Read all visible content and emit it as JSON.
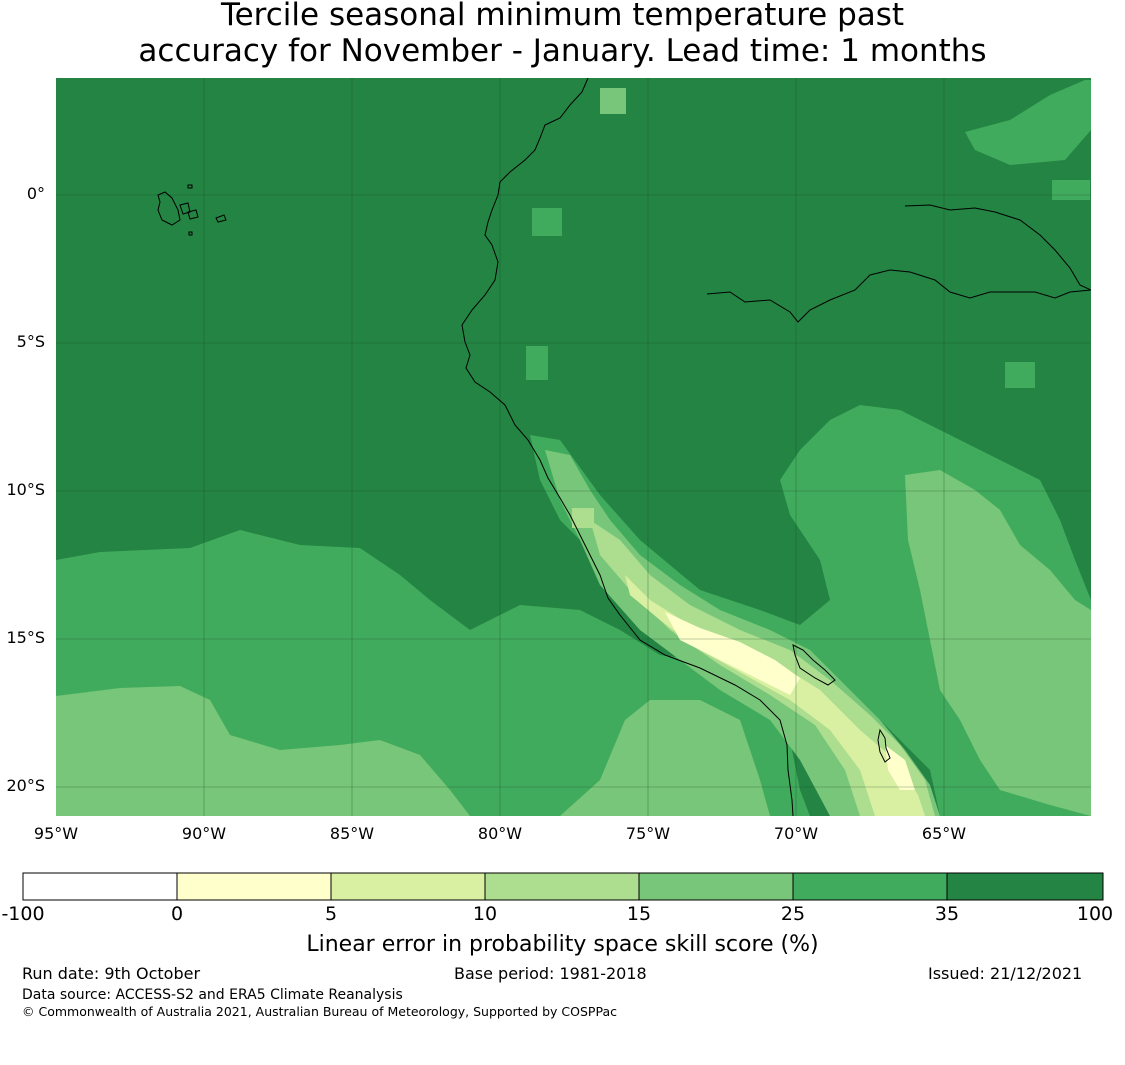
{
  "title": {
    "line1": "Tercile seasonal minimum temperature past",
    "line2": "accuracy for November - January. Lead time: 1 months"
  },
  "map": {
    "lat_labels": [
      "0°",
      "5°S",
      "10°S",
      "15°S",
      "20°S"
    ],
    "lon_labels": [
      "95°W",
      "90°W",
      "85°W",
      "80°W",
      "75°W",
      "70°W",
      "65°W"
    ],
    "gridlines": true
  },
  "colorbar": {
    "ticks": [
      "-100",
      "0",
      "5",
      "10",
      "15",
      "25",
      "35",
      "100"
    ],
    "colors": [
      "#ffffff",
      "#ffffcc",
      "#d9f0a3",
      "#addd8e",
      "#78c679",
      "#41ab5d",
      "#238443"
    ],
    "label": "Linear error in probability space skill score (%)"
  },
  "footer": {
    "run_date": "Run date: 9th October",
    "base_period": "Base period: 1981-2018",
    "issued": "Issued: 21/12/2021",
    "data_source": "Data source: ACCESS-S2 and ERA5 Climate Reanalysis",
    "copyright": "© Commonwealth of Australia 2021, Australian Bureau of Meteorology, Supported by COSPPac"
  }
}
